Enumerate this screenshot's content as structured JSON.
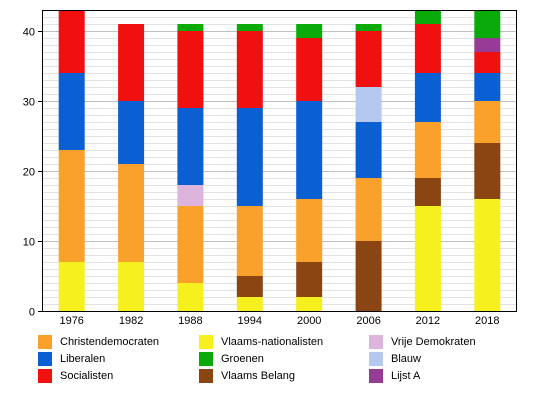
{
  "chart_data": {
    "type": "bar",
    "stacked": true,
    "title": "",
    "xlabel": "",
    "ylabel": "",
    "ylim": [
      0,
      43
    ],
    "yticks": [
      0,
      10,
      20,
      30,
      40
    ],
    "grid": true,
    "legend_position": "bottom",
    "categories": [
      "1976",
      "1982",
      "1988",
      "1994",
      "2000",
      "2006",
      "2012",
      "2018"
    ],
    "series": [
      {
        "name": "Vlaams-nationalisten",
        "color": "#f5f01e",
        "values": [
          7,
          7,
          4,
          2,
          2,
          0,
          15,
          16
        ]
      },
      {
        "name": "Vlaams Belang",
        "color": "#8b4513",
        "values": [
          0,
          0,
          0,
          3,
          5,
          10,
          4,
          8
        ]
      },
      {
        "name": "Christendemocraten",
        "color": "#f9a12b",
        "values": [
          16,
          14,
          11,
          10,
          9,
          9,
          8,
          6
        ]
      },
      {
        "name": "Vrije Demokraten",
        "color": "#dcb4dc",
        "values": [
          0,
          0,
          3,
          0,
          0,
          0,
          0,
          0
        ]
      },
      {
        "name": "Liberalen",
        "color": "#0a5fd2",
        "values": [
          11,
          9,
          11,
          14,
          14,
          8,
          7,
          4
        ]
      },
      {
        "name": "Blauw",
        "color": "#b4c8f0",
        "values": [
          0,
          0,
          0,
          0,
          0,
          5,
          0,
          0
        ]
      },
      {
        "name": "Socialisten",
        "color": "#f01010",
        "values": [
          10,
          11,
          11,
          11,
          9,
          8,
          7,
          3
        ]
      },
      {
        "name": "Lijst A",
        "color": "#963c96",
        "values": [
          0,
          0,
          0,
          0,
          0,
          0,
          0,
          2
        ]
      },
      {
        "name": "Groenen",
        "color": "#0aaa0a",
        "values": [
          0,
          0,
          1,
          1,
          2,
          1,
          2,
          4
        ]
      }
    ]
  },
  "legend": [
    {
      "label": "Christendemocraten",
      "color": "#f9a12b"
    },
    {
      "label": "Liberalen",
      "color": "#0a5fd2"
    },
    {
      "label": "Socialisten",
      "color": "#f01010"
    },
    {
      "label": "Vlaams-nationalisten",
      "color": "#f5f01e"
    },
    {
      "label": "Groenen",
      "color": "#0aaa0a"
    },
    {
      "label": "Vlaams Belang",
      "color": "#8b4513"
    },
    {
      "label": "Vrije Demokraten",
      "color": "#dcb4dc"
    },
    {
      "label": "Blauw",
      "color": "#b4c8f0"
    },
    {
      "label": "Lijst A",
      "color": "#963c96"
    }
  ]
}
